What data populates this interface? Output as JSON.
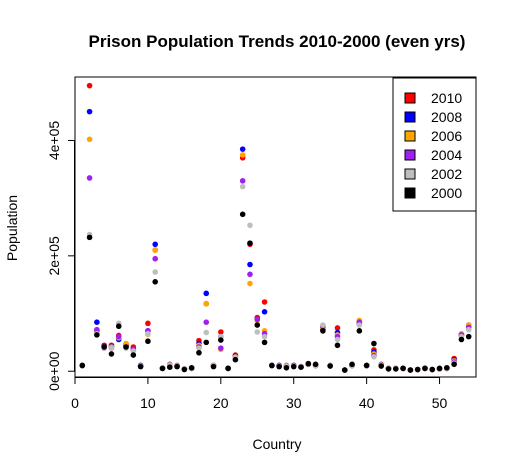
{
  "chart_data": {
    "type": "scatter",
    "title": "Prison Population Trends 2010-2000 (even yrs)",
    "xlabel": "Country",
    "ylabel": "Population",
    "xlim": [
      0,
      55
    ],
    "ylim": [
      -10000,
      510000
    ],
    "x_ticks": [
      0,
      10,
      20,
      30,
      40,
      50
    ],
    "x_tick_labels": [
      "0",
      "10",
      "20",
      "30",
      "40",
      "50"
    ],
    "y_ticks": [
      0,
      200000,
      400000
    ],
    "y_tick_labels": [
      "0e+00",
      "2e+05",
      "4e+05"
    ],
    "grid": false,
    "legend_position": "top-right",
    "series": [
      {
        "name": "2010",
        "color": "#ff0000",
        "x": [
          1,
          2,
          3,
          4,
          5,
          6,
          7,
          8,
          9,
          10,
          11,
          12,
          13,
          14,
          15,
          16,
          17,
          18,
          19,
          20,
          21,
          22,
          23,
          24,
          25,
          26,
          27,
          28,
          29,
          30,
          31,
          32,
          33,
          34,
          35,
          36,
          37,
          38,
          39,
          40,
          41,
          42,
          43,
          44,
          45,
          46,
          47,
          48,
          49,
          50,
          51,
          52,
          53,
          54
        ],
        "y": [
          10000,
          495000,
          70000,
          45000,
          45000,
          62000,
          47000,
          42000,
          10000,
          83000,
          210000,
          5000,
          12000,
          10000,
          4000,
          5000,
          53000,
          117000,
          10000,
          68000,
          5000,
          28000,
          370000,
          220000,
          93000,
          120000,
          10000,
          10000,
          10000,
          10000,
          8000,
          13000,
          10000,
          75000,
          10000,
          75000,
          2000,
          10000,
          86000,
          10000,
          37000,
          12000,
          5000,
          5000,
          5000,
          2000,
          3000,
          5000,
          3000,
          4000,
          5000,
          22000,
          64000,
          78000
        ]
      },
      {
        "name": "2008",
        "color": "#0000ff",
        "x": [
          1,
          2,
          3,
          4,
          5,
          6,
          7,
          8,
          9,
          10,
          11,
          12,
          13,
          14,
          15,
          16,
          17,
          18,
          19,
          20,
          21,
          22,
          23,
          24,
          25,
          26,
          27,
          28,
          29,
          30,
          31,
          32,
          33,
          34,
          35,
          36,
          37,
          38,
          39,
          40,
          41,
          42,
          43,
          44,
          45,
          46,
          47,
          48,
          49,
          50,
          51,
          52,
          53,
          54
        ],
        "y": [
          10000,
          450000,
          85000,
          43000,
          43000,
          55000,
          45000,
          38000,
          10000,
          70000,
          220000,
          5000,
          10000,
          9000,
          4000,
          5000,
          48000,
          135000,
          10000,
          60000,
          5000,
          26000,
          385000,
          185000,
          90000,
          103000,
          10000,
          10000,
          9000,
          10000,
          8000,
          13000,
          10000,
          73000,
          10000,
          67000,
          2000,
          10000,
          83000,
          10000,
          33000,
          11000,
          5000,
          5000,
          5000,
          2000,
          3000,
          5000,
          3000,
          4000,
          5000,
          20000,
          62000,
          80000
        ]
      },
      {
        "name": "2006",
        "color": "#ffa500",
        "x": [
          1,
          2,
          3,
          4,
          5,
          6,
          7,
          8,
          9,
          10,
          11,
          12,
          13,
          14,
          15,
          16,
          17,
          18,
          19,
          20,
          21,
          22,
          23,
          24,
          25,
          26,
          27,
          28,
          29,
          30,
          31,
          32,
          33,
          34,
          35,
          36,
          37,
          38,
          39,
          40,
          41,
          42,
          43,
          44,
          45,
          46,
          47,
          48,
          49,
          50,
          51,
          52,
          53,
          54
        ],
        "y": [
          10000,
          402000,
          72000,
          42000,
          42000,
          58000,
          48000,
          36000,
          9000,
          64000,
          210000,
          5000,
          10000,
          9000,
          4000,
          5000,
          45000,
          117000,
          10000,
          38000,
          5000,
          25000,
          375000,
          152000,
          88000,
          70000,
          10000,
          9000,
          9000,
          9000,
          8000,
          12000,
          10000,
          75000,
          10000,
          63000,
          2000,
          10000,
          88000,
          10000,
          30000,
          11000,
          5000,
          5000,
          5000,
          2000,
          3000,
          5000,
          3000,
          4000,
          5000,
          18000,
          65000,
          80000
        ]
      },
      {
        "name": "2004",
        "color": "#a020f0",
        "x": [
          1,
          2,
          3,
          4,
          5,
          6,
          7,
          8,
          9,
          10,
          11,
          12,
          13,
          14,
          15,
          16,
          17,
          18,
          19,
          20,
          21,
          22,
          23,
          24,
          25,
          26,
          27,
          28,
          29,
          30,
          31,
          32,
          33,
          34,
          35,
          36,
          37,
          38,
          39,
          40,
          41,
          42,
          43,
          44,
          45,
          46,
          47,
          48,
          49,
          50,
          51,
          52,
          53,
          54
        ],
        "y": [
          10000,
          335000,
          72000,
          40000,
          40000,
          60000,
          42000,
          38000,
          9000,
          70000,
          195000,
          5000,
          11000,
          9000,
          4000,
          5000,
          42000,
          85000,
          10000,
          40000,
          5000,
          24000,
          330000,
          168000,
          90000,
          65000,
          10000,
          9000,
          9000,
          9000,
          8000,
          12000,
          10000,
          78000,
          10000,
          60000,
          2000,
          10000,
          85000,
          10000,
          27000,
          11000,
          5000,
          5000,
          5000,
          2000,
          3000,
          5000,
          3000,
          4000,
          5000,
          16000,
          63000,
          76000
        ]
      },
      {
        "name": "2002",
        "color": "#bebebe",
        "x": [
          1,
          2,
          3,
          4,
          5,
          6,
          7,
          8,
          9,
          10,
          11,
          12,
          13,
          14,
          15,
          16,
          17,
          18,
          19,
          20,
          21,
          22,
          23,
          24,
          25,
          26,
          27,
          28,
          29,
          30,
          31,
          32,
          33,
          34,
          35,
          36,
          37,
          38,
          39,
          40,
          41,
          42,
          43,
          44,
          45,
          46,
          47,
          48,
          49,
          50,
          51,
          52,
          53,
          54
        ],
        "y": [
          10000,
          237000,
          65000,
          40000,
          40000,
          83000,
          40000,
          35000,
          9000,
          65000,
          172000,
          5000,
          11000,
          9000,
          4000,
          5000,
          40000,
          67000,
          10000,
          60000,
          5000,
          24000,
          320000,
          253000,
          68000,
          60000,
          10000,
          9000,
          9000,
          9000,
          8000,
          12000,
          10000,
          80000,
          10000,
          55000,
          2000,
          10000,
          80000,
          10000,
          25000,
          11000,
          5000,
          5000,
          5000,
          2000,
          3000,
          5000,
          3000,
          4000,
          5000,
          14000,
          60000,
          72000
        ]
      },
      {
        "name": "2000",
        "color": "#000000",
        "x": [
          1,
          2,
          3,
          4,
          5,
          6,
          7,
          8,
          9,
          10,
          11,
          12,
          13,
          14,
          15,
          16,
          17,
          18,
          19,
          20,
          21,
          22,
          23,
          24,
          25,
          26,
          27,
          28,
          29,
          30,
          31,
          32,
          33,
          34,
          35,
          36,
          37,
          38,
          39,
          40,
          41,
          42,
          43,
          44,
          45,
          46,
          47,
          48,
          49,
          50,
          51,
          52,
          53,
          54
        ],
        "y": [
          10000,
          232000,
          63000,
          42000,
          30000,
          78000,
          42000,
          28000,
          8000,
          52000,
          155000,
          5000,
          7000,
          8000,
          3000,
          6000,
          32000,
          50000,
          8000,
          54000,
          5000,
          20000,
          272000,
          222000,
          80000,
          50000,
          10000,
          8000,
          6000,
          8000,
          7000,
          13000,
          12000,
          70000,
          9000,
          45000,
          2000,
          12000,
          70000,
          10000,
          48000,
          9000,
          4000,
          4000,
          5000,
          2000,
          3000,
          5000,
          3000,
          5000,
          6000,
          12000,
          55000,
          60000
        ]
      }
    ]
  }
}
